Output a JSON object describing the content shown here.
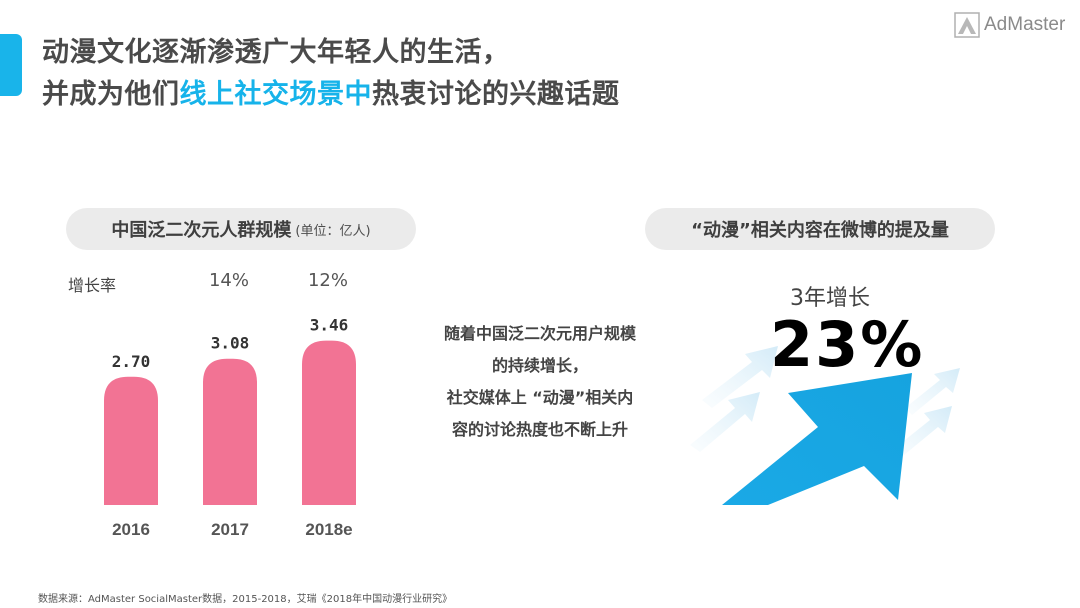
{
  "slide": {
    "title_line1": "动漫文化逐渐渗透广大年轻人的生活，",
    "title_line2_pre": "并成为他们",
    "title_line2_highlight": "线上社交场景中",
    "title_line2_post": "热衷讨论的兴趣话题",
    "logo_text": "AdMaster",
    "source": "数据来源：AdMaster SocialMaster数据，2015-2018，艾瑞《2018年中国动漫行业研究》"
  },
  "left_panel": {
    "pill_title": "中国泛二次元人群规模",
    "pill_unit": "(单位：亿人)",
    "growth_label": "增长率",
    "growth_rates": [
      "14%",
      "12%"
    ]
  },
  "side_text": {
    "lines": [
      "随着中国泛二次元用户规模",
      "的持续增长，",
      "社交媒体上 “动漫”相关内",
      "容的讨论热度也不断上升"
    ]
  },
  "right_panel": {
    "pill_title": "“动漫”相关内容在微博的提及量",
    "growth_title": "3年增长",
    "growth_value": "23%"
  },
  "chart_data": {
    "type": "bar",
    "categories": [
      "2016",
      "2017",
      "2018e"
    ],
    "values": [
      2.7,
      3.08,
      3.46
    ],
    "value_labels": [
      "2.70",
      "3.08",
      "3.46"
    ],
    "title": "中国泛二次元人群规模",
    "unit": "(单位：亿人)",
    "growth_rates": [
      "",
      "14%",
      "12%"
    ],
    "color": "#f27394",
    "grid": false
  }
}
